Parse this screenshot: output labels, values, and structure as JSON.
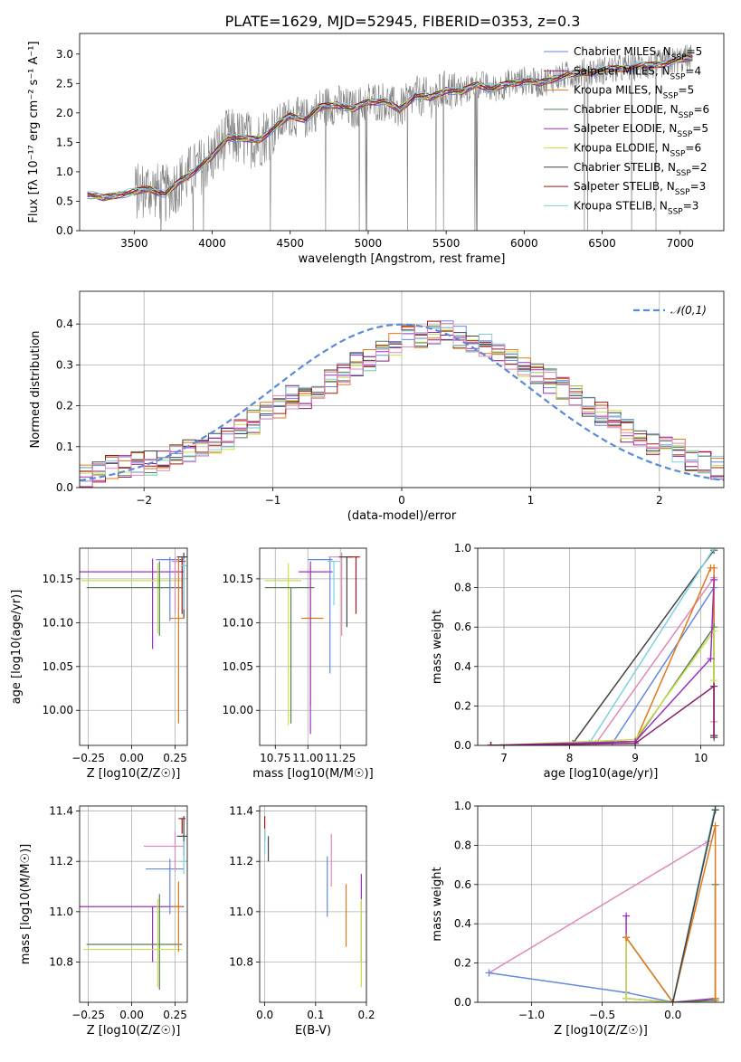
{
  "figure": {
    "title": "PLATE=1629, MJD=52945, FIBERID=0353, z=0.3",
    "colors": {
      "Chabrier MILES": "#6688dd",
      "Salpeter MILES": "#8b1f6b",
      "Kroupa MILES": "#e07a1f",
      "Chabrier ELODIE": "#5a7a5a",
      "Salpeter ELODIE": "#9b30c0",
      "Kroupa ELODIE": "#c8e04a",
      "Chabrier STELIB": "#444444",
      "Salpeter STELIB": "#a01818",
      "Kroupa STELIB": "#7fd0e0",
      "pink": "#e088b8",
      "data": "#808080",
      "normal": "#5b8ad6"
    }
  },
  "chart_data": [
    {
      "id": "spectrum",
      "type": "line",
      "xlabel": "wavelength [Angstrom, rest frame]",
      "ylabel": "Flux [f_λ 10^-17 erg cm^-2 s^-1 A^-1]",
      "xlim": [
        3150,
        7280
      ],
      "ylim": [
        0,
        3.35
      ],
      "xticks": [
        3500,
        4000,
        4500,
        5000,
        5500,
        6000,
        6500,
        7000
      ],
      "yticks": [
        0.0,
        0.5,
        1.0,
        1.5,
        2.0,
        2.5,
        3.0
      ],
      "legend_position": "top-right",
      "legend": [
        {
          "name": "Chabrier MILES",
          "nssp": "5"
        },
        {
          "name": "Salpeter MILES",
          "nssp": "4"
        },
        {
          "name": "Kroupa MILES",
          "nssp": "5"
        },
        {
          "name": "Chabrier ELODIE",
          "nssp": "6"
        },
        {
          "name": "Salpeter ELODIE",
          "nssp": "5"
        },
        {
          "name": "Kroupa ELODIE",
          "nssp": "6"
        },
        {
          "name": "Chabrier STELIB",
          "nssp": "2"
        },
        {
          "name": "Salpeter STELIB",
          "nssp": "3"
        },
        {
          "name": "Kroupa STELIB",
          "nssp": "3"
        }
      ],
      "model_continuum": {
        "x": [
          3200,
          3300,
          3400,
          3500,
          3600,
          3700,
          3800,
          3900,
          4000,
          4100,
          4200,
          4300,
          4400,
          4500,
          4600,
          4700,
          4800,
          4900,
          5000,
          5100,
          5200,
          5300,
          5400,
          5500,
          5600,
          5700,
          5800,
          5900,
          6000,
          6100,
          6200,
          6300,
          6400,
          6500,
          6600,
          6700,
          6800,
          6900,
          7000,
          7100
        ],
        "y": [
          0.62,
          0.55,
          0.62,
          0.65,
          0.72,
          0.62,
          0.85,
          1.05,
          1.25,
          1.6,
          1.55,
          1.55,
          1.75,
          1.95,
          1.9,
          2.1,
          2.15,
          2.05,
          2.2,
          2.2,
          2.05,
          2.3,
          2.25,
          2.4,
          2.35,
          2.5,
          2.4,
          2.5,
          2.55,
          2.5,
          2.6,
          2.65,
          2.7,
          2.72,
          2.75,
          2.78,
          2.8,
          2.85,
          2.9,
          2.95
        ]
      },
      "data_series": "observed spectrum (grey)"
    },
    {
      "id": "residuals",
      "type": "bar",
      "xlabel": "(data-model)/error",
      "ylabel": "Normed distribution",
      "xlim": [
        -2.5,
        2.5
      ],
      "ylim": [
        0,
        0.48
      ],
      "xticks": [
        -2,
        -1,
        0,
        1,
        2
      ],
      "yticks": [
        0.0,
        0.1,
        0.2,
        0.3,
        0.4
      ],
      "legend": "𝒩(0,1)",
      "legend_position": "top-right",
      "bin_width": 0.1,
      "bin_start": -2.5,
      "histogram_envelope": [
        0.03,
        0.04,
        0.05,
        0.05,
        0.06,
        0.06,
        0.07,
        0.08,
        0.09,
        0.1,
        0.11,
        0.12,
        0.14,
        0.16,
        0.18,
        0.2,
        0.22,
        0.22,
        0.24,
        0.26,
        0.28,
        0.3,
        0.31,
        0.33,
        0.35,
        0.37,
        0.37,
        0.38,
        0.38,
        0.37,
        0.36,
        0.35,
        0.33,
        0.31,
        0.3,
        0.28,
        0.26,
        0.24,
        0.22,
        0.2,
        0.18,
        0.16,
        0.14,
        0.13,
        0.11,
        0.1,
        0.09,
        0.07,
        0.06,
        0.05
      ]
    },
    {
      "id": "age-vs-Z",
      "type": "scatter",
      "xlabel": "Z [log10(Z/Z☉)]",
      "ylabel": "age [log10(age/yr)]",
      "xlim": [
        -0.3,
        0.32
      ],
      "ylim": [
        9.96,
        10.185
      ],
      "xticks": [
        -0.25,
        0.0,
        0.25
      ],
      "xticklabels": [
        "−0.25",
        "0.00",
        "0.25"
      ],
      "yticks": [
        10.0,
        10.05,
        10.1,
        10.15
      ],
      "yticklabels": [
        "10.00",
        "10.05",
        "10.10",
        "10.15"
      ],
      "points": [
        {
          "model": "Salpeter ELODIE",
          "x": 0.12,
          "y": 10.158,
          "xerr": [
            0.42,
            0.18
          ],
          "yerr": [
            0.088,
            0.015
          ]
        },
        {
          "model": "Kroupa ELODIE",
          "x": 0.15,
          "y": 10.148,
          "xerr": [
            0.44,
            0.14
          ],
          "yerr": [
            0.06,
            0.02
          ]
        },
        {
          "model": "Chabrier ELODIE",
          "x": 0.16,
          "y": 10.14,
          "xerr": [
            0.42,
            0.13
          ],
          "yerr": [
            0.055,
            0.03
          ]
        },
        {
          "model": "Chabrier MILES",
          "x": 0.22,
          "y": 10.172,
          "xerr": [
            0.08,
            0.08
          ],
          "yerr": [
            0.07,
            0.003
          ]
        },
        {
          "model": "Kroupa MILES",
          "x": 0.27,
          "y": 10.105,
          "xerr": [
            0.05,
            0.03
          ],
          "yerr": [
            0.12,
            0.07
          ]
        },
        {
          "model": "Chabrier STELIB",
          "x": 0.3,
          "y": 10.175,
          "xerr": [
            0.04,
            0.02
          ],
          "yerr": [
            0.07,
            0.005
          ]
        },
        {
          "model": "Salpeter STELIB",
          "x": 0.29,
          "y": 10.17,
          "xerr": [
            0.02,
            0.02
          ],
          "yerr": [
            0.06,
            0.005
          ]
        },
        {
          "model": "pink",
          "x": 0.25,
          "y": 10.17,
          "xerr": [
            0.02,
            0.02
          ],
          "yerr": [
            0.06,
            0.005
          ]
        },
        {
          "model": "Kroupa STELIB",
          "x": 0.3,
          "y": 10.165,
          "xerr": [
            0.02,
            0.02
          ],
          "yerr": [
            0.05,
            0.008
          ]
        }
      ]
    },
    {
      "id": "age-vs-mass",
      "type": "scatter",
      "xlabel": "mass [log10(M/M☉)]",
      "xlim": [
        10.63,
        11.45
      ],
      "ylim": [
        9.96,
        10.185
      ],
      "xticks": [
        10.75,
        11.0,
        11.25
      ],
      "xticklabels": [
        "10.75",
        "11.00",
        "11.25"
      ],
      "yticks": [
        10.0,
        10.05,
        10.1,
        10.15
      ],
      "yticklabels": [
        "10.00",
        "10.05",
        "10.10",
        "10.15"
      ],
      "points": [
        {
          "model": "Kroupa ELODIE",
          "x": 10.85,
          "y": 10.148,
          "xerr": [
            0.18,
            0.1
          ],
          "yerr": [
            0.165,
            0.02
          ]
        },
        {
          "model": "Chabrier ELODIE",
          "x": 10.87,
          "y": 10.14,
          "xerr": [
            0.2,
            0.18
          ],
          "yerr": [
            0.155,
            0.0
          ]
        },
        {
          "model": "Kroupa MILES",
          "x": 11.02,
          "y": 10.105,
          "xerr": [
            0.07,
            0.1
          ],
          "yerr": [
            0.1,
            0.06
          ]
        },
        {
          "model": "Salpeter ELODIE",
          "x": 11.02,
          "y": 10.158,
          "xerr": [
            0.09,
            0.17
          ],
          "yerr": [
            0.185,
            0.012
          ]
        },
        {
          "model": "Chabrier MILES",
          "x": 11.17,
          "y": 10.172,
          "xerr": [
            0.17,
            0.02
          ],
          "yerr": [
            0.13,
            0.003
          ]
        },
        {
          "model": "pink",
          "x": 11.26,
          "y": 10.175,
          "xerr": [
            0.1,
            0.04
          ],
          "yerr": [
            0.09,
            0.005
          ]
        },
        {
          "model": "Chabrier STELIB",
          "x": 11.3,
          "y": 10.175,
          "xerr": [
            0.06,
            0.04
          ],
          "yerr": [
            0.08,
            0.0
          ]
        },
        {
          "model": "Salpeter STELIB",
          "x": 11.37,
          "y": 10.175,
          "xerr": [
            0.06,
            0.03
          ],
          "yerr": [
            0.065,
            0.0
          ]
        },
        {
          "model": "Kroupa STELIB",
          "x": 11.2,
          "y": 10.17,
          "xerr": [
            0.05,
            0.05
          ],
          "yerr": [
            0.05,
            0.0
          ]
        }
      ]
    },
    {
      "id": "mass-weight-vs-age",
      "type": "line",
      "xlabel": "age [log10(age/yr)]",
      "ylabel": "mass weight",
      "xlim": [
        6.6,
        10.35
      ],
      "ylim": [
        0,
        1.0
      ],
      "xticks": [
        7,
        8,
        9,
        10
      ],
      "yticks": [
        0.0,
        0.2,
        0.4,
        0.6,
        0.8,
        1.0
      ],
      "series": [
        {
          "model": "Chabrier STELIB",
          "x": [
            6.8,
            8.05,
            10.2
          ],
          "y": [
            0.0,
            0.01,
            0.99
          ]
        },
        {
          "model": "Kroupa STELIB",
          "x": [
            6.8,
            8.3,
            10.2
          ],
          "y": [
            0.0,
            0.01,
            1.0
          ]
        },
        {
          "model": "Chabrier MILES",
          "x": [
            6.8,
            8.65,
            10.2,
            10.2
          ],
          "y": [
            0.0,
            0.01,
            0.8,
            0.04
          ]
        },
        {
          "model": "pink",
          "x": [
            6.8,
            8.4,
            10.2,
            10.2
          ],
          "y": [
            0.0,
            0.01,
            0.85,
            0.12
          ]
        },
        {
          "model": "Kroupa MILES",
          "x": [
            6.8,
            9.0,
            10.15,
            10.2,
            10.2
          ],
          "y": [
            0.0,
            0.02,
            0.9,
            0.9,
            0.05
          ]
        },
        {
          "model": "Chabrier ELODIE",
          "x": [
            6.8,
            9.0,
            10.2,
            10.2
          ],
          "y": [
            0.0,
            0.02,
            0.6,
            0.04
          ]
        },
        {
          "model": "Kroupa ELODIE",
          "x": [
            6.8,
            9.0,
            10.2,
            10.2
          ],
          "y": [
            0.0,
            0.03,
            0.58,
            0.33
          ]
        },
        {
          "model": "Salpeter ELODIE",
          "x": [
            6.8,
            9.0,
            10.15,
            10.2
          ],
          "y": [
            0.0,
            0.02,
            0.44,
            0.84
          ]
        },
        {
          "model": "Salpeter MILES",
          "x": [
            6.8,
            9.0,
            10.2,
            10.2
          ],
          "y": [
            0.0,
            0.01,
            0.3,
            0.05
          ]
        }
      ]
    },
    {
      "id": "mass-vs-Z",
      "type": "scatter",
      "xlabel": "Z [log10(Z/Z☉)]",
      "ylabel": "mass [log10(M/M☉)]",
      "xlim": [
        -0.3,
        0.32
      ],
      "ylim": [
        10.64,
        11.42
      ],
      "xticks": [
        -0.25,
        0.0,
        0.25
      ],
      "xticklabels": [
        "−0.25",
        "0.00",
        "0.25"
      ],
      "yticks": [
        10.8,
        11.0,
        11.2,
        11.4
      ],
      "yticklabels": [
        "10.8",
        "11.0",
        "11.2",
        "11.4"
      ],
      "points": [
        {
          "model": "Salpeter ELODIE",
          "x": 0.12,
          "y": 11.02,
          "xerr": [
            0.42,
            0.18
          ],
          "yerr": [
            0.22,
            0.0
          ]
        },
        {
          "model": "Chabrier ELODIE",
          "x": 0.16,
          "y": 10.87,
          "xerr": [
            0.42,
            0.13
          ],
          "yerr": [
            0.18,
            0.2
          ]
        },
        {
          "model": "Kroupa ELODIE",
          "x": 0.15,
          "y": 10.85,
          "xerr": [
            0.43,
            0.14
          ],
          "yerr": [
            0.15,
            0.2
          ]
        },
        {
          "model": "Chabrier MILES",
          "x": 0.22,
          "y": 11.17,
          "xerr": [
            0.14,
            0.08
          ],
          "yerr": [
            0.18,
            0.04
          ]
        },
        {
          "model": "Kroupa MILES",
          "x": 0.27,
          "y": 11.02,
          "xerr": [
            0.04,
            0.02
          ],
          "yerr": [
            0.18,
            0.1
          ]
        },
        {
          "model": "pink",
          "x": 0.25,
          "y": 11.26,
          "xerr": [
            0.18,
            0.05
          ],
          "yerr": [
            0.1,
            0.06
          ]
        },
        {
          "model": "Chabrier STELIB",
          "x": 0.3,
          "y": 11.3,
          "xerr": [
            0.04,
            0.02
          ],
          "yerr": [
            0.08,
            0.08
          ]
        },
        {
          "model": "Salpeter STELIB",
          "x": 0.29,
          "y": 11.37,
          "xerr": [
            0.02,
            0.02
          ],
          "yerr": [
            0.06,
            0.0
          ]
        },
        {
          "model": "Kroupa STELIB",
          "x": 0.3,
          "y": 11.2,
          "xerr": [
            0.02,
            0.02
          ],
          "yerr": [
            0.05,
            0.08
          ]
        }
      ]
    },
    {
      "id": "mass-vs-EBV",
      "type": "scatter",
      "xlabel": "E(B-V)",
      "xlim": [
        -0.01,
        0.2
      ],
      "ylim": [
        10.64,
        11.42
      ],
      "xticks": [
        0.0,
        0.1,
        0.2
      ],
      "xticklabels": [
        "0.0",
        "0.1",
        "0.2"
      ],
      "yticks": [
        10.8,
        11.0,
        11.2,
        11.4
      ],
      "yticklabels": [
        "10.8",
        "11.0",
        "11.2",
        "11.4"
      ],
      "points": [
        {
          "model": "Salpeter STELIB",
          "x": 0.0,
          "y": 11.33,
          "yerr": [
            0.05,
            0.05
          ]
        },
        {
          "model": "Chabrier STELIB",
          "x": 0.007,
          "y": 11.25,
          "yerr": [
            0.05,
            0.05
          ]
        },
        {
          "model": "Chabrier MILES",
          "x": 0.123,
          "y": 11.1,
          "yerr": [
            0.12,
            0.12
          ]
        },
        {
          "model": "pink",
          "x": 0.131,
          "y": 11.2,
          "yerr": [
            0.1,
            0.11
          ]
        },
        {
          "model": "Kroupa MILES",
          "x": 0.16,
          "y": 10.99,
          "yerr": [
            0.13,
            0.12
          ]
        },
        {
          "model": "Salpeter ELODIE",
          "x": 0.19,
          "y": 11.02,
          "yerr": [
            0.22,
            0.13
          ]
        },
        {
          "model": "Kroupa ELODIE",
          "x": 0.19,
          "y": 10.85,
          "yerr": [
            0.15,
            0.2
          ]
        },
        {
          "model": "Kroupa STELIB",
          "x": 0.0,
          "y": 11.28,
          "yerr": [
            0.05,
            0.05
          ]
        }
      ]
    },
    {
      "id": "mass-weight-vs-Z",
      "type": "line",
      "xlabel": "Z [log10(Z/Z☉)]",
      "ylabel": "mass weight",
      "xlim": [
        -1.38,
        0.36
      ],
      "ylim": [
        0,
        1.0
      ],
      "xticks": [
        -1.0,
        -0.5,
        0.0
      ],
      "xticklabels": [
        "−1.0",
        "−0.5",
        "0.0"
      ],
      "yticks": [
        0.0,
        0.2,
        0.4,
        0.6,
        0.8,
        1.0
      ],
      "series": [
        {
          "model": "pink",
          "x": [
            -1.3,
            0.25
          ],
          "y": [
            0.15,
            0.82
          ]
        },
        {
          "model": "Chabrier MILES",
          "x": [
            -1.3,
            -0.33,
            0.0,
            0.3
          ],
          "y": [
            0.15,
            0.05,
            0.0,
            0.98
          ]
        },
        {
          "model": "Salpeter ELODIE",
          "x": [
            -0.33,
            -0.33,
            0.0,
            0.3
          ],
          "y": [
            0.44,
            0.02,
            0.0,
            0.02
          ]
        },
        {
          "model": "Kroupa ELODIE",
          "x": [
            -0.33,
            -0.33,
            0.0,
            0.3,
            0.3
          ],
          "y": [
            0.33,
            0.02,
            0.0,
            0.0,
            0.6
          ]
        },
        {
          "model": "Chabrier ELODIE",
          "x": [
            -0.33,
            0.0,
            0.3,
            0.3
          ],
          "y": [
            0.33,
            0.0,
            0.01,
            0.6
          ]
        },
        {
          "model": "Kroupa MILES",
          "x": [
            -0.33,
            0.0,
            0.3,
            0.3
          ],
          "y": [
            0.33,
            0.0,
            0.9,
            0.02
          ]
        },
        {
          "model": "Kroupa STELIB",
          "x": [
            0.0,
            0.3
          ],
          "y": [
            0.0,
            1.0
          ]
        },
        {
          "model": "Chabrier STELIB",
          "x": [
            0.0,
            0.3
          ],
          "y": [
            0.0,
            0.98
          ]
        }
      ]
    }
  ]
}
